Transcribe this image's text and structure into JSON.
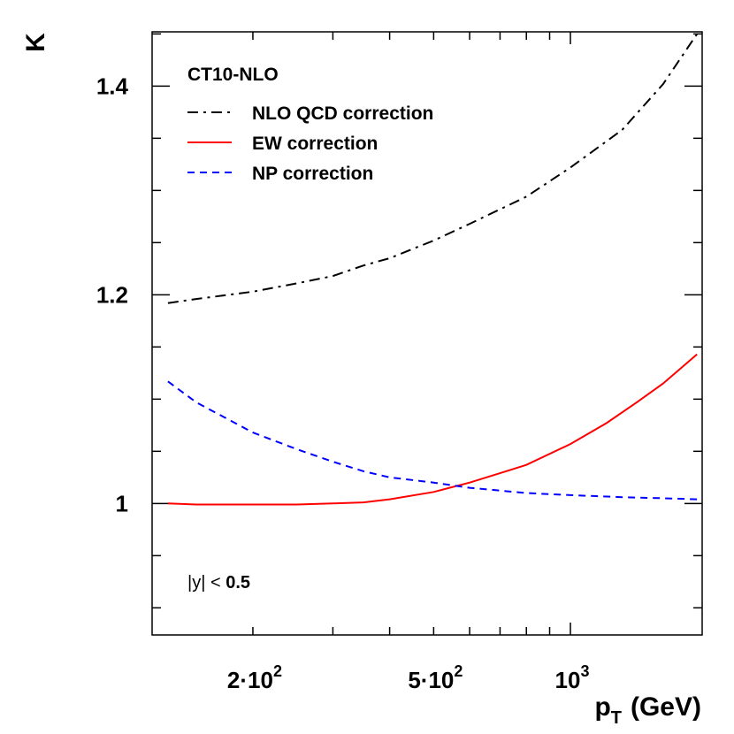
{
  "chart_data": {
    "type": "line",
    "title": "",
    "xlabel": "p_T (GeV)",
    "xlabel_main": "p",
    "xlabel_sub": "T",
    "xlabel_rest": "(GeV)",
    "ylabel": "K",
    "x_scale": "log",
    "xlim": [
      120,
      1950
    ],
    "ylim": [
      0.874,
      1.452
    ],
    "grid": false,
    "x_tick_labels": [
      {
        "value": 200,
        "mantissa": "2·10",
        "exp": "2"
      },
      {
        "value": 500,
        "mantissa": "5·10",
        "exp": "2"
      },
      {
        "value": 1000,
        "mantissa": "10",
        "exp": "3"
      }
    ],
    "y_tick_labels": [
      {
        "value": 1.0,
        "label": "1"
      },
      {
        "value": 1.2,
        "label": "1.2"
      },
      {
        "value": 1.4,
        "label": "1.4"
      }
    ],
    "legend": {
      "title": "CT10-NLO",
      "position": "top-left"
    },
    "annotation": {
      "prefix": "|y| <",
      "value": "0.5"
    },
    "series": [
      {
        "name": "NLO QCD correction",
        "color": "#000000",
        "style": "dash-dot",
        "x": [
          130,
          150,
          200,
          250,
          300,
          350,
          400,
          500,
          600,
          800,
          1000,
          1300,
          1600,
          1900
        ],
        "y": [
          1.192,
          1.196,
          1.203,
          1.211,
          1.218,
          1.228,
          1.235,
          1.252,
          1.268,
          1.294,
          1.322,
          1.358,
          1.402,
          1.45
        ]
      },
      {
        "name": "EW correction",
        "color": "#ff0000",
        "style": "solid",
        "x": [
          130,
          150,
          200,
          250,
          300,
          350,
          400,
          500,
          600,
          700,
          800,
          1000,
          1200,
          1400,
          1600,
          1900
        ],
        "y": [
          1.0,
          0.999,
          0.999,
          0.999,
          1.0,
          1.001,
          1.004,
          1.011,
          1.02,
          1.029,
          1.037,
          1.057,
          1.077,
          1.097,
          1.115,
          1.143
        ]
      },
      {
        "name": "NP correction",
        "color": "#0000ff",
        "style": "dashed",
        "x": [
          130,
          150,
          200,
          250,
          300,
          350,
          400,
          500,
          600,
          800,
          1000,
          1300,
          1600,
          1900
        ],
        "y": [
          1.117,
          1.097,
          1.068,
          1.052,
          1.04,
          1.031,
          1.025,
          1.02,
          1.015,
          1.01,
          1.008,
          1.006,
          1.005,
          1.004
        ]
      }
    ]
  }
}
